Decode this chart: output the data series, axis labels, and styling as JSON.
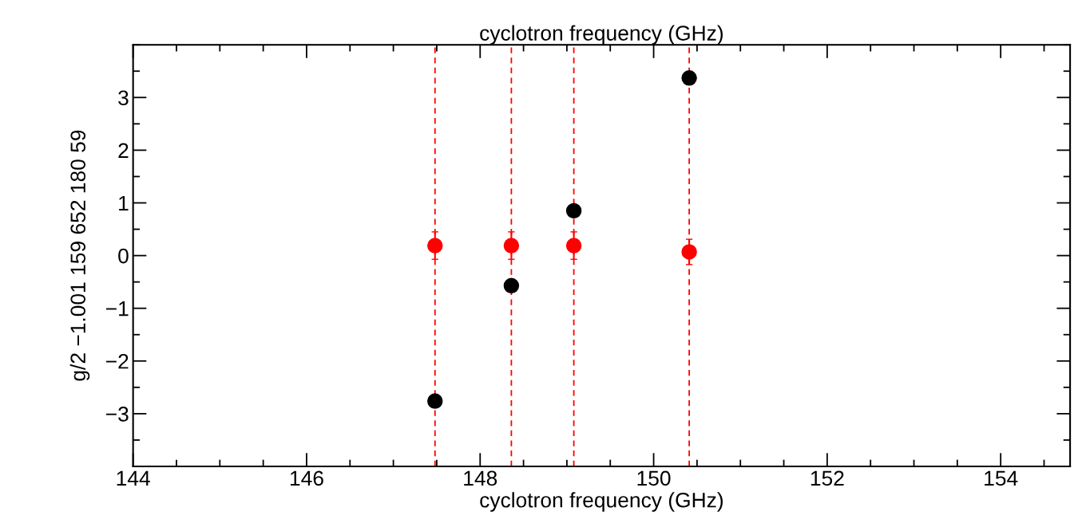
{
  "chart_data": {
    "type": "scatter",
    "xlabel": "cyclotron frequency (GHz)",
    "x2label": "cyclotron frequency (GHz)",
    "ylabel": "g/2 −1.001 159 652 180 59",
    "x": [
      147.48,
      148.36,
      149.08,
      150.41
    ],
    "series": [
      {
        "color": "#000000",
        "values": [
          -2.76,
          -0.57,
          0.85,
          3.37
        ]
      },
      {
        "color": "#ff0000",
        "values": [
          0.19,
          0.19,
          0.19,
          0.07
        ],
        "errors": [
          0.26,
          0.26,
          0.26,
          0.24
        ]
      }
    ],
    "xlim": [
      144,
      154.8
    ],
    "xticks": [
      144,
      146,
      148,
      150,
      152,
      154
    ],
    "ylim": [
      -4,
      4
    ],
    "yticks": [
      -3,
      -2,
      -1,
      0,
      1,
      2,
      3
    ],
    "ref_lines": [
      {
        "axis": "x",
        "value": 147.48,
        "color": "#ff0000",
        "line_style": "dashed"
      },
      {
        "axis": "x",
        "value": 148.36,
        "color": "#ff0000",
        "line_style": "dashed"
      },
      {
        "axis": "x",
        "value": 149.08,
        "color": "#ff0000",
        "line_style": "dashed"
      },
      {
        "axis": "x",
        "value": 150.41,
        "color": "#ff0000",
        "line_style": "dashed"
      }
    ],
    "marker": "circle",
    "grid": false,
    "legend": false,
    "tick_labels": "xy"
  }
}
